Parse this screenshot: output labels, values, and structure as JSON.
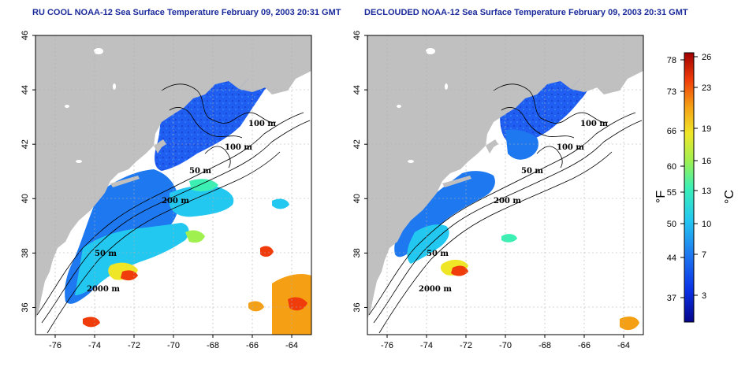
{
  "maps": [
    {
      "title": "RU COOL NOAA-12 Sea Surface Temperature February 09, 2003 20:31 GMT",
      "contour_labels": [
        "100 m",
        "100 m",
        "50 m",
        "200 m",
        "50 m",
        "2000 m"
      ]
    },
    {
      "title": "DECLOUDED NOAA-12 Sea Surface Temperature February 09, 2003 20:31 GMT",
      "contour_labels": [
        "100 m",
        "100 m",
        "50 m",
        "200 m",
        "50 m",
        "2000 m"
      ]
    }
  ],
  "axes": {
    "x_ticks": [
      "-76",
      "-74",
      "-72",
      "-70",
      "-68",
      "-66",
      "-64"
    ],
    "y_ticks": [
      "36",
      "38",
      "40",
      "42",
      "44",
      "46"
    ],
    "lon_range": [
      -77,
      -63
    ],
    "lat_range": [
      35,
      46
    ],
    "grid": "dotted"
  },
  "colorbar": {
    "fahrenheit_ticks": [
      "78",
      "73",
      "66",
      "60",
      "55",
      "50",
      "44",
      "37"
    ],
    "celsius_ticks": [
      "26",
      "23",
      "19",
      "16",
      "13",
      "10",
      "7",
      "3"
    ],
    "fahrenheit_label": "°F",
    "celsius_label": "°C",
    "colors": [
      "#05058c",
      "#0a32e6",
      "#1e78f0",
      "#23c8f0",
      "#3cf0b4",
      "#a0f050",
      "#f0e628",
      "#f5a014",
      "#f03c0a",
      "#a00000"
    ]
  },
  "colors": {
    "land": "#c0c0c0",
    "cloud": "#ffffff"
  }
}
